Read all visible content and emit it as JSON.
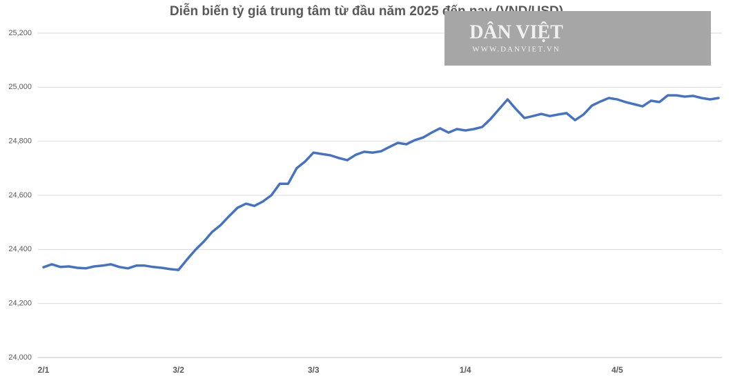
{
  "chart_data": {
    "type": "line",
    "title": "Diễn biến tỷ giá trung tâm từ đầu năm 2025 đến nay (VND/USD)",
    "watermark": {
      "brand": "DÂN VIỆT",
      "url": "WWW.DANVIET.VN"
    },
    "categories": [
      "2/1",
      null,
      null,
      null,
      null,
      null,
      null,
      null,
      null,
      null,
      null,
      null,
      null,
      null,
      null,
      null,
      "3/2",
      null,
      null,
      null,
      null,
      null,
      null,
      null,
      null,
      null,
      null,
      null,
      null,
      null,
      null,
      null,
      "3/3",
      null,
      null,
      null,
      null,
      null,
      null,
      null,
      null,
      null,
      null,
      null,
      null,
      null,
      null,
      null,
      null,
      null,
      "1/4",
      null,
      null,
      null,
      null,
      null,
      null,
      null,
      null,
      null,
      null,
      null,
      null,
      null,
      null,
      null,
      null,
      null,
      "4/5",
      null,
      null,
      null,
      null,
      null,
      null,
      null,
      null,
      null,
      null,
      null,
      null
    ],
    "series": [
      {
        "name": "VND/USD",
        "color": "#4472c4",
        "values": [
          24334,
          24345,
          24335,
          24337,
          24332,
          24330,
          24337,
          24340,
          24345,
          24335,
          24330,
          24340,
          24340,
          24335,
          24332,
          24327,
          24324,
          24362,
          24398,
          24429,
          24465,
          24490,
          24523,
          24554,
          24569,
          24561,
          24577,
          24600,
          24643,
          24643,
          24700,
          24725,
          24758,
          24753,
          24748,
          24738,
          24730,
          24750,
          24761,
          24758,
          24763,
          24779,
          24794,
          24789,
          24804,
          24814,
          24832,
          24848,
          24832,
          24845,
          24840,
          24845,
          24853,
          24883,
          24919,
          24955,
          24919,
          24886,
          24893,
          24901,
          24893,
          24899,
          24904,
          24878,
          24899,
          24932,
          24947,
          24960,
          24955,
          24945,
          24937,
          24929,
          24950,
          24945,
          24970,
          24970,
          24965,
          24968,
          24960,
          24955,
          24960
        ]
      }
    ],
    "ylim": [
      24000,
      25200
    ],
    "yticks": [
      {
        "value": 24000,
        "label": "24,000"
      },
      {
        "value": 24200,
        "label": "24,200"
      },
      {
        "value": 24400,
        "label": "24,400"
      },
      {
        "value": 24600,
        "label": "24,600"
      },
      {
        "value": 24800,
        "label": "24,800"
      },
      {
        "value": 25000,
        "label": "25,000"
      },
      {
        "value": 25200,
        "label": "25,200"
      }
    ],
    "grid": true
  }
}
